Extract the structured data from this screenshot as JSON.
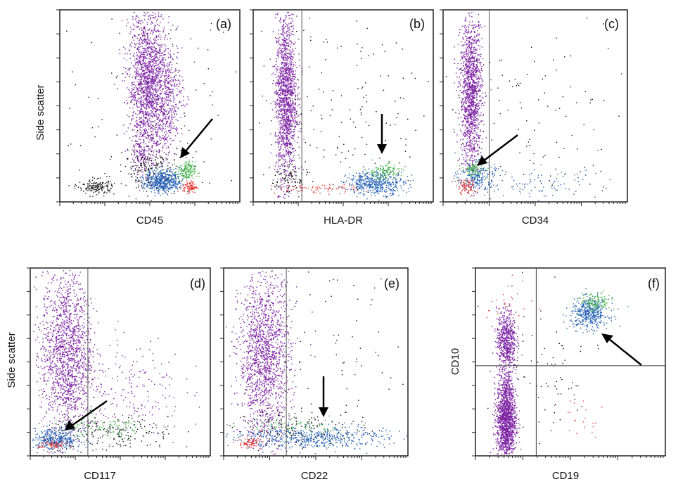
{
  "chart_data": [
    {
      "type": "scatter",
      "panel_label": "(a)",
      "xlabel": "CD45",
      "ylabel": "Side scatter",
      "x_scale": "log",
      "gate_line_x": null,
      "gate_line_y": null,
      "series": [
        {
          "color": "#7b1fa2",
          "clusters": [
            {
              "x": 0.48,
              "y": 0.62,
              "sx": 0.05,
              "sy": 0.2,
              "n": 1500
            },
            {
              "x": 0.58,
              "y": 0.55,
              "sx": 0.05,
              "sy": 0.15,
              "n": 600
            },
            {
              "x": 0.46,
              "y": 0.25,
              "sx": 0.03,
              "sy": 0.05,
              "n": 120
            }
          ]
        },
        {
          "color": "#111111",
          "clusters": [
            {
              "x": 0.2,
              "y": 0.08,
              "sx": 0.05,
              "sy": 0.02,
              "n": 160
            },
            {
              "x": 0.5,
              "y": 0.17,
              "sx": 0.09,
              "sy": 0.05,
              "n": 180
            },
            {
              "x": 0.5,
              "y": 0.5,
              "sx": 0.25,
              "sy": 0.3,
              "n": 120
            }
          ]
        },
        {
          "color": "#1e5cb3",
          "clusters": [
            {
              "x": 0.57,
              "y": 0.11,
              "sx": 0.05,
              "sy": 0.03,
              "n": 500
            }
          ]
        },
        {
          "color": "#3cb043",
          "clusters": [
            {
              "x": 0.7,
              "y": 0.16,
              "sx": 0.025,
              "sy": 0.025,
              "n": 150
            }
          ]
        },
        {
          "color": "#e53935",
          "clusters": [
            {
              "x": 0.72,
              "y": 0.08,
              "sx": 0.02,
              "sy": 0.015,
              "n": 90
            }
          ]
        }
      ]
    },
    {
      "type": "scatter",
      "panel_label": "(b)",
      "xlabel": "HLA-DR",
      "ylabel": "",
      "x_scale": "log",
      "gate_line_x": 0.27,
      "gate_line_y": null,
      "series": [
        {
          "color": "#7b1fa2",
          "clusters": [
            {
              "x": 0.18,
              "y": 0.55,
              "sx": 0.03,
              "sy": 0.22,
              "n": 1500
            }
          ]
        },
        {
          "color": "#111111",
          "clusters": [
            {
              "x": 0.5,
              "y": 0.45,
              "sx": 0.28,
              "sy": 0.3,
              "n": 180
            },
            {
              "x": 0.2,
              "y": 0.12,
              "sx": 0.05,
              "sy": 0.05,
              "n": 100
            }
          ]
        },
        {
          "color": "#e53935",
          "clusters": [
            {
              "x": 0.35,
              "y": 0.07,
              "sx": 0.12,
              "sy": 0.012,
              "n": 80
            }
          ]
        },
        {
          "color": "#1e5cb3",
          "clusters": [
            {
              "x": 0.68,
              "y": 0.1,
              "sx": 0.08,
              "sy": 0.03,
              "n": 450
            }
          ]
        },
        {
          "color": "#3cb043",
          "clusters": [
            {
              "x": 0.72,
              "y": 0.16,
              "sx": 0.05,
              "sy": 0.02,
              "n": 120
            }
          ]
        }
      ]
    },
    {
      "type": "scatter",
      "panel_label": "(c)",
      "xlabel": "CD34",
      "ylabel": "",
      "x_scale": "log",
      "gate_line_x": 0.25,
      "gate_line_y": null,
      "series": [
        {
          "color": "#7b1fa2",
          "clusters": [
            {
              "x": 0.15,
              "y": 0.57,
              "sx": 0.03,
              "sy": 0.2,
              "n": 1400
            }
          ]
        },
        {
          "color": "#111111",
          "clusters": [
            {
              "x": 0.5,
              "y": 0.4,
              "sx": 0.28,
              "sy": 0.3,
              "n": 120
            }
          ]
        },
        {
          "color": "#1e5cb3",
          "clusters": [
            {
              "x": 0.18,
              "y": 0.13,
              "sx": 0.05,
              "sy": 0.04,
              "n": 220
            },
            {
              "x": 0.55,
              "y": 0.1,
              "sx": 0.15,
              "sy": 0.04,
              "n": 90
            }
          ]
        },
        {
          "color": "#3cb043",
          "clusters": [
            {
              "x": 0.16,
              "y": 0.17,
              "sx": 0.03,
              "sy": 0.02,
              "n": 90
            }
          ]
        },
        {
          "color": "#e53935",
          "clusters": [
            {
              "x": 0.12,
              "y": 0.08,
              "sx": 0.03,
              "sy": 0.02,
              "n": 80
            }
          ]
        }
      ]
    },
    {
      "type": "scatter",
      "panel_label": "(d)",
      "xlabel": "CD117",
      "ylabel": "Side scatter",
      "x_scale": "log",
      "gate_line_x": 0.32,
      "gate_line_y": null,
      "series": [
        {
          "color": "#7b1fa2",
          "clusters": [
            {
              "x": 0.2,
              "y": 0.55,
              "sx": 0.07,
              "sy": 0.22,
              "n": 1600
            },
            {
              "x": 0.55,
              "y": 0.35,
              "sx": 0.15,
              "sy": 0.15,
              "n": 200
            }
          ]
        },
        {
          "color": "#111111",
          "clusters": [
            {
              "x": 0.45,
              "y": 0.12,
              "sx": 0.18,
              "sy": 0.05,
              "n": 180
            }
          ]
        },
        {
          "color": "#3cb043",
          "clusters": [
            {
              "x": 0.4,
              "y": 0.15,
              "sx": 0.15,
              "sy": 0.03,
              "n": 110
            }
          ]
        },
        {
          "color": "#1e5cb3",
          "clusters": [
            {
              "x": 0.14,
              "y": 0.09,
              "sx": 0.07,
              "sy": 0.03,
              "n": 380
            }
          ]
        },
        {
          "color": "#e53935",
          "clusters": [
            {
              "x": 0.12,
              "y": 0.06,
              "sx": 0.04,
              "sy": 0.015,
              "n": 70
            }
          ]
        }
      ]
    },
    {
      "type": "scatter",
      "panel_label": "(e)",
      "xlabel": "CD22",
      "ylabel": "",
      "x_scale": "log",
      "gate_line_x": 0.34,
      "gate_line_y": null,
      "series": [
        {
          "color": "#7b1fa2",
          "clusters": [
            {
              "x": 0.22,
              "y": 0.52,
              "sx": 0.07,
              "sy": 0.22,
              "n": 1600
            }
          ]
        },
        {
          "color": "#111111",
          "clusters": [
            {
              "x": 0.4,
              "y": 0.15,
              "sx": 0.18,
              "sy": 0.05,
              "n": 160
            },
            {
              "x": 0.6,
              "y": 0.5,
              "sx": 0.25,
              "sy": 0.3,
              "n": 80
            }
          ]
        },
        {
          "color": "#1e5cb3",
          "clusters": [
            {
              "x": 0.48,
              "y": 0.1,
              "sx": 0.2,
              "sy": 0.03,
              "n": 500
            }
          ]
        },
        {
          "color": "#3cb043",
          "clusters": [
            {
              "x": 0.35,
              "y": 0.16,
              "sx": 0.15,
              "sy": 0.02,
              "n": 80
            }
          ]
        },
        {
          "color": "#e53935",
          "clusters": [
            {
              "x": 0.14,
              "y": 0.07,
              "sx": 0.03,
              "sy": 0.015,
              "n": 70
            }
          ]
        }
      ]
    },
    {
      "type": "scatter",
      "panel_label": "(f)",
      "xlabel": "CD19",
      "ylabel": "CD10",
      "x_scale": "log",
      "gate_line_x": 0.32,
      "gate_line_y": 0.48,
      "series": [
        {
          "color": "#7b1fa2",
          "clusters": [
            {
              "x": 0.16,
              "y": 0.2,
              "sx": 0.025,
              "sy": 0.12,
              "n": 1500
            },
            {
              "x": 0.16,
              "y": 0.62,
              "sx": 0.025,
              "sy": 0.08,
              "n": 600
            }
          ]
        },
        {
          "color": "#1e5cb3",
          "clusters": [
            {
              "x": 0.6,
              "y": 0.76,
              "sx": 0.05,
              "sy": 0.04,
              "n": 420
            }
          ]
        },
        {
          "color": "#3cb043",
          "clusters": [
            {
              "x": 0.63,
              "y": 0.82,
              "sx": 0.04,
              "sy": 0.025,
              "n": 120
            }
          ]
        },
        {
          "color": "#111111",
          "clusters": [
            {
              "x": 0.35,
              "y": 0.4,
              "sx": 0.15,
              "sy": 0.25,
              "n": 90
            }
          ]
        },
        {
          "color": "#e53935",
          "clusters": [
            {
              "x": 0.18,
              "y": 0.8,
              "sx": 0.06,
              "sy": 0.06,
              "n": 25
            },
            {
              "x": 0.55,
              "y": 0.2,
              "sx": 0.06,
              "sy": 0.06,
              "n": 20
            }
          ]
        }
      ]
    }
  ]
}
